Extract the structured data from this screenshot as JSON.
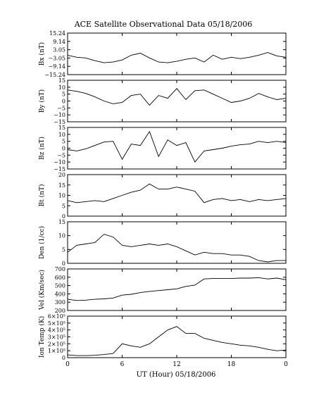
{
  "title": "ACE Satellite Observational Data   05/18/2006",
  "xlabel": "UT (Hour)   05/18/2006",
  "x_ticks": [
    "0",
    "6",
    "12",
    "18",
    "0"
  ],
  "chart_data": [
    {
      "type": "line",
      "ylabel": "Bx (nT)",
      "ylim": [
        -15.24,
        15.24
      ],
      "yticks": [
        -15.24,
        -9.14,
        -3.05,
        3.05,
        9.14,
        15.24
      ],
      "ytick_labels": [
        "−15.24",
        "−9.14",
        "−3.05",
        "3.05",
        "9.14",
        "15.24"
      ],
      "x": [
        0,
        1,
        2,
        3,
        4,
        5,
        6,
        7,
        8,
        9,
        10,
        11,
        12,
        13,
        14,
        15,
        16,
        17,
        18,
        19,
        20,
        21,
        22,
        23,
        24
      ],
      "y": [
        -1.0,
        -2.5,
        -3.0,
        -5.0,
        -6.5,
        -6.0,
        -4.5,
        -1.0,
        0.5,
        -3.0,
        -6.0,
        -6.5,
        -5.5,
        -4.0,
        -3.0,
        -6.0,
        -1.0,
        -4.0,
        -2.5,
        -3.5,
        -2.5,
        -1.0,
        1.0,
        -1.5,
        -2.5
      ]
    },
    {
      "type": "line",
      "ylabel": "By (nT)",
      "ylim": [
        -15,
        15
      ],
      "yticks": [
        -15,
        -10,
        -5,
        0,
        5,
        10,
        15
      ],
      "ytick_labels": [
        "−15",
        "−10",
        "−5",
        "0",
        "5",
        "10",
        "15"
      ],
      "x": [
        0,
        1,
        2,
        3,
        4,
        5,
        6,
        7,
        8,
        9,
        10,
        11,
        12,
        13,
        14,
        15,
        16,
        17,
        18,
        19,
        20,
        21,
        22,
        23,
        24
      ],
      "y": [
        8.0,
        7.0,
        5.5,
        3.0,
        0.0,
        -2.0,
        -1.0,
        4.0,
        5.0,
        -3.0,
        4.0,
        2.0,
        9.0,
        1.0,
        7.5,
        8.0,
        5.0,
        2.0,
        -1.0,
        0.0,
        2.0,
        5.5,
        3.0,
        1.0,
        2.0
      ]
    },
    {
      "type": "line",
      "ylabel": "Bz (nT)",
      "ylim": [
        -15,
        15
      ],
      "yticks": [
        -15,
        -10,
        -5,
        0,
        5,
        10,
        15
      ],
      "ytick_labels": [
        "−15",
        "−10",
        "−5",
        "0",
        "5",
        "10",
        "15"
      ],
      "x": [
        0,
        1,
        2,
        3,
        4,
        5,
        6,
        7,
        8,
        9,
        10,
        11,
        12,
        13,
        14,
        15,
        16,
        17,
        18,
        19,
        20,
        21,
        22,
        23,
        24
      ],
      "y": [
        -1.0,
        -2.0,
        -0.5,
        2.0,
        4.5,
        5.0,
        -8.0,
        3.0,
        2.0,
        12.0,
        -6.0,
        6.0,
        2.0,
        4.0,
        -10.0,
        -2.0,
        -1.0,
        0.0,
        1.5,
        2.5,
        3.0,
        5.0,
        4.0,
        5.0,
        4.0
      ]
    },
    {
      "type": "line",
      "ylabel": "Bt (nT)",
      "ylim": [
        0,
        20
      ],
      "yticks": [
        0,
        5,
        10,
        15,
        20
      ],
      "ytick_labels": [
        "0",
        "5",
        "10",
        "15",
        "20"
      ],
      "x": [
        0,
        1,
        2,
        3,
        4,
        5,
        6,
        7,
        8,
        9,
        10,
        11,
        12,
        13,
        14,
        15,
        16,
        17,
        18,
        19,
        20,
        21,
        22,
        23,
        24
      ],
      "y": [
        7.5,
        6.5,
        7.0,
        7.5,
        7.0,
        8.5,
        10.0,
        11.5,
        12.5,
        15.5,
        13.0,
        13.0,
        14.0,
        13.0,
        12.0,
        6.5,
        8.0,
        8.5,
        7.5,
        8.0,
        7.0,
        8.0,
        7.5,
        8.0,
        8.5
      ]
    },
    {
      "type": "line",
      "ylabel": "Den (1/cc)",
      "ylim": [
        0,
        15
      ],
      "yticks": [
        0,
        5,
        10,
        15
      ],
      "ytick_labels": [
        "0",
        "5",
        "10",
        "15"
      ],
      "x": [
        0,
        1,
        2,
        3,
        4,
        5,
        6,
        7,
        8,
        9,
        10,
        11,
        12,
        13,
        14,
        15,
        16,
        17,
        18,
        19,
        20,
        21,
        22,
        23,
        24
      ],
      "y": [
        4.0,
        6.5,
        7.0,
        7.5,
        10.5,
        9.5,
        6.5,
        6.0,
        6.5,
        7.0,
        6.5,
        7.0,
        6.0,
        4.5,
        3.0,
        4.0,
        3.5,
        3.5,
        3.0,
        3.0,
        2.5,
        1.0,
        0.5,
        1.0,
        1.0
      ]
    },
    {
      "type": "line",
      "ylabel": "Vel (Km/sec)",
      "ylim": [
        200,
        700
      ],
      "yticks": [
        200,
        300,
        400,
        500,
        600,
        700
      ],
      "ytick_labels": [
        "200",
        "300",
        "400",
        "500",
        "600",
        "700"
      ],
      "x": [
        0,
        1,
        2,
        3,
        4,
        5,
        6,
        7,
        8,
        9,
        10,
        11,
        12,
        13,
        14,
        15,
        16,
        17,
        18,
        19,
        20,
        21,
        22,
        23,
        24
      ],
      "y": [
        335,
        320,
        325,
        335,
        340,
        350,
        385,
        395,
        415,
        430,
        440,
        450,
        460,
        490,
        505,
        580,
        585,
        585,
        585,
        590,
        590,
        595,
        580,
        590,
        570
      ]
    },
    {
      "type": "line",
      "ylabel": "Ion Temp (K)",
      "ylim": [
        0,
        600000
      ],
      "yticks": [
        0,
        100000,
        200000,
        300000,
        400000,
        500000,
        600000
      ],
      "ytick_labels": [
        "0",
        "1×10⁵",
        "2×10⁵",
        "3×10⁵",
        "4×10⁵",
        "5×10⁵",
        "6×10⁵"
      ],
      "x": [
        0,
        1,
        2,
        3,
        4,
        5,
        6,
        7,
        8,
        9,
        10,
        11,
        12,
        13,
        14,
        15,
        16,
        17,
        18,
        19,
        20,
        21,
        22,
        23,
        24
      ],
      "y": [
        40000,
        30000,
        30000,
        35000,
        45000,
        60000,
        200000,
        170000,
        150000,
        200000,
        300000,
        400000,
        450000,
        350000,
        350000,
        280000,
        250000,
        220000,
        200000,
        180000,
        170000,
        150000,
        120000,
        100000,
        110000
      ]
    }
  ]
}
